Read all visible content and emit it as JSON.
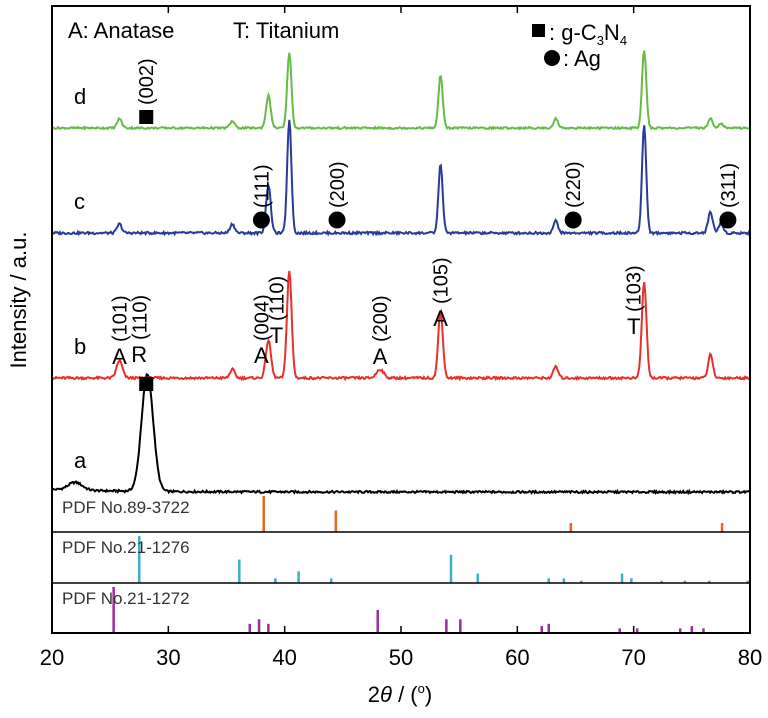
{
  "chart_data": {
    "type": "line",
    "xlabel": "2θ / (o)",
    "xlabel_parts": {
      "pre": "2",
      "theta": "θ",
      "post": " / (",
      "sup": "o",
      "end": ")"
    },
    "ylabel": "Intensity / a.u.",
    "xlim": [
      20,
      80
    ],
    "xticks": [
      "20",
      "30",
      "40",
      "50",
      "60",
      "70",
      "80"
    ],
    "legend_text": {
      "anatase": "A: Anatase",
      "titanium": "T: Titanium",
      "gcn_label": ": g-C",
      "gcn_sub1": "3",
      "gcn_n": "N",
      "gcn_sub2": "4",
      "ag_label": ": Ag"
    },
    "series": [
      {
        "name": "a",
        "color": "#000000",
        "baseline": 0.08,
        "peaks": [
          {
            "x": 22.0,
            "h": 0.03,
            "w": 0.6
          },
          {
            "x": 28.2,
            "h": 0.45,
            "w": 0.5
          }
        ]
      },
      {
        "name": "b",
        "color": "#e8302a",
        "baseline": 0.02,
        "peaks": [
          {
            "x": 25.8,
            "h": 0.06,
            "w": 0.25
          },
          {
            "x": 35.5,
            "h": 0.03,
            "w": 0.2
          },
          {
            "x": 38.6,
            "h": 0.13,
            "w": 0.22
          },
          {
            "x": 40.4,
            "h": 0.37,
            "w": 0.2
          },
          {
            "x": 48.2,
            "h": 0.03,
            "w": 0.3
          },
          {
            "x": 53.4,
            "h": 0.23,
            "w": 0.2
          },
          {
            "x": 63.3,
            "h": 0.04,
            "w": 0.2
          },
          {
            "x": 70.9,
            "h": 0.33,
            "w": 0.2
          },
          {
            "x": 76.6,
            "h": 0.08,
            "w": 0.2
          }
        ]
      },
      {
        "name": "c",
        "color": "#2a3a9a",
        "baseline": 0.02,
        "peaks": [
          {
            "x": 25.8,
            "h": 0.03,
            "w": 0.2
          },
          {
            "x": 35.5,
            "h": 0.03,
            "w": 0.2
          },
          {
            "x": 38.6,
            "h": 0.16,
            "w": 0.2
          },
          {
            "x": 40.4,
            "h": 0.38,
            "w": 0.18
          },
          {
            "x": 53.4,
            "h": 0.23,
            "w": 0.18
          },
          {
            "x": 63.3,
            "h": 0.04,
            "w": 0.2
          },
          {
            "x": 70.9,
            "h": 0.36,
            "w": 0.18
          },
          {
            "x": 76.6,
            "h": 0.07,
            "w": 0.2
          },
          {
            "x": 77.5,
            "h": 0.03,
            "w": 0.2
          }
        ]
      },
      {
        "name": "d",
        "color": "#66bb44",
        "baseline": 0.02,
        "peaks": [
          {
            "x": 25.8,
            "h": 0.04,
            "w": 0.2
          },
          {
            "x": 35.5,
            "h": 0.03,
            "w": 0.2
          },
          {
            "x": 38.6,
            "h": 0.14,
            "w": 0.2
          },
          {
            "x": 40.4,
            "h": 0.33,
            "w": 0.18
          },
          {
            "x": 53.4,
            "h": 0.23,
            "w": 0.18
          },
          {
            "x": 63.3,
            "h": 0.04,
            "w": 0.2
          },
          {
            "x": 70.9,
            "h": 0.34,
            "w": 0.18
          },
          {
            "x": 76.6,
            "h": 0.04,
            "w": 0.2
          },
          {
            "x": 77.5,
            "h": 0.02,
            "w": 0.2
          }
        ]
      }
    ],
    "annotations": [
      {
        "series": "b",
        "x": 25.8,
        "marker": "A",
        "index": "(101)"
      },
      {
        "series": "b",
        "x": 27.5,
        "marker": "R",
        "index": "(110)"
      },
      {
        "series": "b",
        "x": 38.0,
        "marker": "A",
        "index": "(004)"
      },
      {
        "series": "b",
        "x": 39.3,
        "marker": "T",
        "index": "(110)"
      },
      {
        "series": "b",
        "x": 48.2,
        "marker": "A",
        "index": "(200)"
      },
      {
        "series": "b",
        "x": 53.4,
        "marker": "A",
        "index": "(105)"
      },
      {
        "series": "b",
        "x": 70.0,
        "marker": "T",
        "index": "(103)"
      },
      {
        "series": "c",
        "x": 38.0,
        "marker": "circle",
        "index": "(111)"
      },
      {
        "series": "c",
        "x": 44.5,
        "marker": "circle",
        "index": "(200)"
      },
      {
        "series": "c",
        "x": 64.8,
        "marker": "circle",
        "index": "(220)"
      },
      {
        "series": "c",
        "x": 78.1,
        "marker": "circle",
        "index": "(311)"
      },
      {
        "series": "d",
        "x": 28.1,
        "marker": "square",
        "index": "(002)"
      },
      {
        "series": "a",
        "x": 28.1,
        "marker": "square",
        "index": ""
      }
    ],
    "references": [
      {
        "name": "PDF No.89-3722",
        "color": "#e06a20",
        "lines": [
          {
            "x": 38.2,
            "h": 1.0
          },
          {
            "x": 44.4,
            "h": 0.6
          },
          {
            "x": 64.6,
            "h": 0.25
          },
          {
            "x": 77.6,
            "h": 0.25
          }
        ]
      },
      {
        "name": "PDF No.21-1276",
        "color": "#3ab0c8",
        "lines": [
          {
            "x": 27.5,
            "h": 1.0
          },
          {
            "x": 36.1,
            "h": 0.5
          },
          {
            "x": 39.2,
            "h": 0.1
          },
          {
            "x": 41.2,
            "h": 0.25
          },
          {
            "x": 44.0,
            "h": 0.1
          },
          {
            "x": 54.3,
            "h": 0.6
          },
          {
            "x": 56.6,
            "h": 0.2
          },
          {
            "x": 62.7,
            "h": 0.1
          },
          {
            "x": 64.0,
            "h": 0.1
          },
          {
            "x": 65.5,
            "h": 0.05
          },
          {
            "x": 69.0,
            "h": 0.2
          },
          {
            "x": 69.8,
            "h": 0.1
          },
          {
            "x": 72.4,
            "h": 0.05
          },
          {
            "x": 74.4,
            "h": 0.05
          },
          {
            "x": 76.5,
            "h": 0.05
          },
          {
            "x": 79.8,
            "h": 0.05
          }
        ]
      },
      {
        "name": "PDF No.21-1272",
        "color": "#9a2e9a",
        "lines": [
          {
            "x": 25.3,
            "h": 1.0
          },
          {
            "x": 37.0,
            "h": 0.2
          },
          {
            "x": 37.8,
            "h": 0.3
          },
          {
            "x": 38.6,
            "h": 0.2
          },
          {
            "x": 48.0,
            "h": 0.5
          },
          {
            "x": 53.9,
            "h": 0.3
          },
          {
            "x": 55.1,
            "h": 0.3
          },
          {
            "x": 62.1,
            "h": 0.15
          },
          {
            "x": 62.7,
            "h": 0.2
          },
          {
            "x": 68.8,
            "h": 0.1
          },
          {
            "x": 70.3,
            "h": 0.1
          },
          {
            "x": 74.0,
            "h": 0.1
          },
          {
            "x": 75.0,
            "h": 0.15
          },
          {
            "x": 76.0,
            "h": 0.1
          }
        ]
      }
    ]
  }
}
